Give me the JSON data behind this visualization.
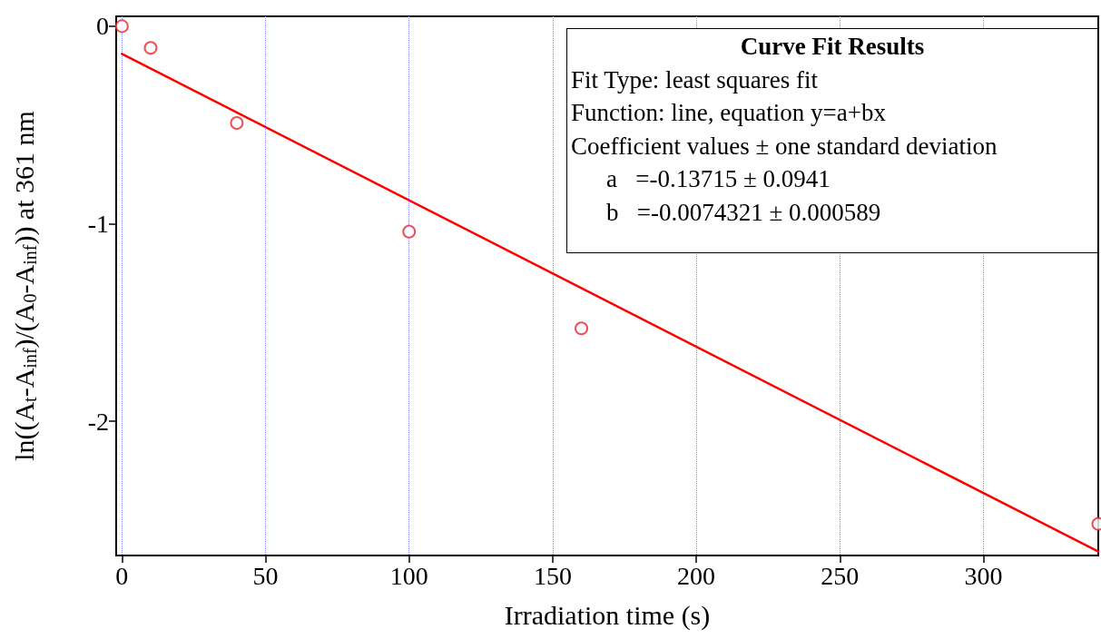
{
  "chart_data": {
    "type": "scatter",
    "xlabel": "Irradiation time (s)",
    "ylabel": "ln((A$_{t}$-A$_{inf}$)/(A$_{0}$-A$_{inf}$)) at 361 nm",
    "x": [
      0,
      10,
      40,
      100,
      160,
      340
    ],
    "series": [
      {
        "color": "#e8242a",
        "values": [
          0,
          -0.11,
          -0.49,
          -1.04,
          -1.53,
          -2.52
        ],
        "marker": "circle"
      },
      {
        "type": "line",
        "color": "#ff0000",
        "x": [
          0,
          340
        ],
        "values": [
          -0.14,
          -2.66
        ],
        "marker": "none",
        "line_style": "solid"
      }
    ],
    "xlim": [
      -2,
      340
    ],
    "xticks": [
      0,
      50,
      100,
      150,
      200,
      250,
      300
    ],
    "ylim": [
      -2.68,
      0.05
    ],
    "yticks": [
      -2,
      -1,
      0
    ],
    "grid": "x",
    "annotations": [
      "Curve Fit Results",
      "Fit Type: least squares fit",
      "Function: line, equation y=a+bx",
      "Coefficient values ± one standard deviation",
      "a   =-0.13715 ± 0.0941",
      "b   =-0.0074321 ± 0.000589"
    ]
  }
}
